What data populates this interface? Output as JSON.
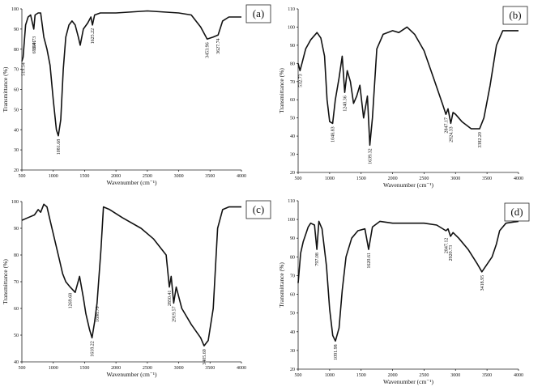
{
  "chart_data": [
    {
      "type": "line",
      "panel_label": "(a)",
      "xlabel": "Wavenumber (cm⁻¹)",
      "ylabel": "Transmittance (%)",
      "xlim": [
        500,
        4000
      ],
      "ylim": [
        20,
        100
      ],
      "xticks": [
        "500",
        "1000",
        "1500",
        "2000",
        "2500",
        "3000",
        "3500",
        "4000"
      ],
      "yticks": [
        "20",
        "30",
        "40",
        "50",
        "60",
        "70",
        "80",
        "90",
        "100"
      ],
      "grid": false,
      "annotations": [
        {
          "text": "519.54",
          "x": 519.54,
          "y": 75
        },
        {
          "text": "690.73",
          "x": 690.73,
          "y": 88
        },
        {
          "text": "693.41",
          "x": 693.41,
          "y": 86
        },
        {
          "text": "1081.68",
          "x": 1081.68,
          "y": 37
        },
        {
          "text": "1625.22",
          "x": 1625.22,
          "y": 92
        },
        {
          "text": "3453.96",
          "x": 3453.96,
          "y": 85
        },
        {
          "text": "3627.74",
          "x": 3627.74,
          "y": 87
        }
      ],
      "x": [
        500,
        520,
        560,
        600,
        640,
        690,
        710,
        760,
        800,
        850,
        900,
        950,
        1000,
        1050,
        1081,
        1120,
        1160,
        1200,
        1250,
        1300,
        1350,
        1400,
        1430,
        1480,
        1550,
        1600,
        1625,
        1660,
        1750,
        2000,
        2500,
        3000,
        3200,
        3350,
        3454,
        3550,
        3628,
        3700,
        3800,
        4000
      ],
      "y": [
        74,
        76,
        92,
        96,
        97,
        90,
        97,
        98,
        98,
        86,
        80,
        72,
        55,
        40,
        37,
        45,
        70,
        86,
        92,
        94,
        92,
        86,
        82,
        90,
        93,
        96,
        92,
        97,
        98,
        98,
        99,
        98,
        97,
        91,
        85,
        86,
        87,
        94,
        96,
        96
      ]
    },
    {
      "type": "line",
      "panel_label": "(b)",
      "xlabel": "Wavenumber (cm⁻¹)",
      "ylabel": "Transmittance (%)",
      "xlim": [
        500,
        4000
      ],
      "ylim": [
        20,
        110
      ],
      "xticks": [
        "500",
        "1000",
        "1500",
        "2000",
        "2500",
        "3000",
        "3500",
        "4000"
      ],
      "yticks": [
        "20",
        "30",
        "40",
        "50",
        "60",
        "70",
        "80",
        "90",
        "100",
        "110"
      ],
      "grid": false,
      "annotations": [
        {
          "text": "532.73",
          "x": 532.73,
          "y": 76
        },
        {
          "text": "1048.83",
          "x": 1048.83,
          "y": 47
        },
        {
          "text": "1240.36",
          "x": 1240.36,
          "y": 64
        },
        {
          "text": "1639.32",
          "x": 1639.32,
          "y": 35
        },
        {
          "text": "2847.17",
          "x": 2847.17,
          "y": 52
        },
        {
          "text": "2924.33",
          "x": 2924.33,
          "y": 47
        },
        {
          "text": "3382.20",
          "x": 3382.2,
          "y": 44
        }
      ],
      "x": [
        500,
        530,
        560,
        620,
        700,
        800,
        860,
        920,
        960,
        1000,
        1048,
        1090,
        1150,
        1200,
        1240,
        1280,
        1330,
        1380,
        1430,
        1480,
        1540,
        1600,
        1639,
        1680,
        1750,
        1850,
        2000,
        2100,
        2230,
        2350,
        2500,
        2650,
        2800,
        2847,
        2880,
        2924,
        2960,
        3000,
        3100,
        3250,
        3382,
        3450,
        3550,
        3650,
        3750,
        4000
      ],
      "y": [
        80,
        76,
        80,
        88,
        93,
        97,
        94,
        84,
        60,
        48,
        47,
        60,
        72,
        84,
        64,
        76,
        70,
        58,
        62,
        68,
        50,
        62,
        35,
        50,
        88,
        96,
        98,
        97,
        100,
        96,
        87,
        72,
        57,
        52,
        55,
        47,
        53,
        52,
        48,
        44,
        44,
        50,
        68,
        90,
        98,
        98
      ]
    },
    {
      "type": "line",
      "panel_label": "(c)",
      "xlabel": "Wavenumber (cm⁻¹)",
      "ylabel": "Transmittance (%)",
      "xlim": [
        500,
        4000
      ],
      "ylim": [
        40,
        100
      ],
      "xticks": [
        "500",
        "1000",
        "1500",
        "2000",
        "2500",
        "3000",
        "3500",
        "4000"
      ],
      "yticks": [
        "40",
        "50",
        "60",
        "70",
        "80",
        "90",
        "100"
      ],
      "grid": false,
      "annotations": [
        {
          "text": "1269.68",
          "x": 1269.68,
          "y": 67
        },
        {
          "text": "1618.22",
          "x": 1618.22,
          "y": 49
        },
        {
          "text": "1698.79",
          "x": 1698.79,
          "y": 62
        },
        {
          "text": "2850.41",
          "x": 2850.41,
          "y": 68
        },
        {
          "text": "2919.57",
          "x": 2919.57,
          "y": 62
        },
        {
          "text": "3405.69",
          "x": 3405.69,
          "y": 46
        }
      ],
      "x": [
        500,
        600,
        700,
        760,
        800,
        850,
        900,
        950,
        1000,
        1050,
        1100,
        1150,
        1200,
        1270,
        1350,
        1420,
        1480,
        1520,
        1580,
        1618,
        1660,
        1698,
        1760,
        1800,
        1900,
        2100,
        2400,
        2600,
        2800,
        2850,
        2880,
        2920,
        2960,
        3050,
        3200,
        3350,
        3405,
        3470,
        3550,
        3620,
        3700,
        3800,
        4000
      ],
      "y": [
        93,
        94,
        95,
        97,
        96,
        99,
        98,
        93,
        88,
        83,
        78,
        73,
        70,
        68,
        66,
        72,
        64,
        58,
        52,
        49,
        55,
        62,
        82,
        98,
        97,
        94,
        90,
        86,
        80,
        68,
        72,
        62,
        68,
        60,
        54,
        49,
        46,
        48,
        60,
        90,
        97,
        98,
        98
      ]
    },
    {
      "type": "line",
      "panel_label": "(d)",
      "xlabel": "Wavenumber (cm⁻¹)",
      "ylabel": "Transmittance (%)",
      "xlim": [
        500,
        4000
      ],
      "ylim": [
        20,
        110
      ],
      "xticks": [
        "500",
        "1000",
        "1500",
        "2000",
        "2500",
        "3000",
        "3500",
        "4000"
      ],
      "yticks": [
        "20",
        "30",
        "40",
        "50",
        "60",
        "70",
        "80",
        "90",
        "100",
        "110"
      ],
      "grid": false,
      "annotations": [
        {
          "text": "797.08",
          "x": 797.08,
          "y": 84
        },
        {
          "text": "1091.98",
          "x": 1091.98,
          "y": 35
        },
        {
          "text": "1620.61",
          "x": 1620.61,
          "y": 84
        },
        {
          "text": "2847.12",
          "x": 2847.12,
          "y": 92
        },
        {
          "text": "2920.73",
          "x": 2920.73,
          "y": 88
        },
        {
          "text": "3418.95",
          "x": 3418.95,
          "y": 72
        }
      ],
      "x": [
        500,
        540,
        580,
        620,
        660,
        700,
        760,
        797,
        830,
        880,
        950,
        1000,
        1050,
        1092,
        1150,
        1200,
        1260,
        1350,
        1450,
        1560,
        1620,
        1680,
        1800,
        2000,
        2500,
        2700,
        2847,
        2880,
        2920,
        2960,
        3050,
        3200,
        3350,
        3419,
        3500,
        3580,
        3650,
        3700,
        3800,
        4000
      ],
      "y": [
        66,
        82,
        88,
        92,
        96,
        98,
        97,
        84,
        99,
        95,
        75,
        52,
        38,
        35,
        42,
        62,
        80,
        90,
        94,
        95,
        84,
        96,
        99,
        98,
        98,
        97,
        94,
        95,
        91,
        93,
        90,
        84,
        76,
        72,
        76,
        80,
        87,
        94,
        98,
        99
      ]
    }
  ]
}
